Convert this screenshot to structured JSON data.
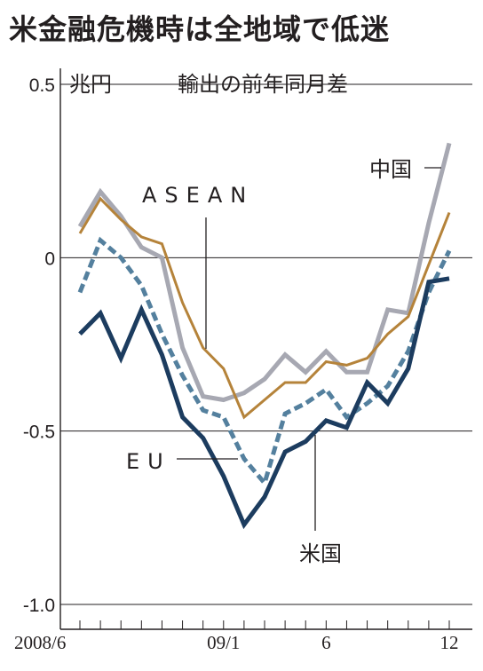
{
  "chart_data": {
    "type": "line",
    "title": "米金融危機時は全地域で低迷",
    "ylabel": "兆円",
    "subtitle": "輸出の前年同月差",
    "ylim": [
      -1.0,
      0.5
    ],
    "y_ticks": [
      {
        "value": 0.5,
        "label": "0.5"
      },
      {
        "value": 0,
        "label": "0"
      },
      {
        "value": -0.5,
        "label": "-0.5"
      },
      {
        "value": -1.0,
        "label": "-1.0"
      }
    ],
    "x": [
      "2008/6",
      "2008/7",
      "2008/8",
      "2008/9",
      "2008/10",
      "2008/11",
      "2008/12",
      "2009/1",
      "2009/2",
      "2009/3",
      "2009/4",
      "2009/5",
      "2009/6",
      "2009/7",
      "2009/8",
      "2009/9",
      "2009/10",
      "2009/11",
      "2009/12"
    ],
    "x_tick_labels": [
      {
        "x": "2008/6",
        "label": "2008/6"
      },
      {
        "x": "2009/1",
        "label": "09/1"
      },
      {
        "x": "2009/6",
        "label": "6"
      },
      {
        "x": "2009/12",
        "label": "12"
      }
    ],
    "series": [
      {
        "name": "中国",
        "color": "#a7a8b2",
        "dashed": false,
        "values": [
          0.09,
          0.19,
          0.12,
          0.03,
          0.0,
          -0.26,
          -0.4,
          -0.41,
          -0.39,
          -0.35,
          -0.28,
          -0.33,
          -0.27,
          -0.33,
          -0.33,
          -0.15,
          -0.16,
          0.1,
          0.33
        ]
      },
      {
        "name": "ASEAN",
        "color": "#b5833a",
        "dashed": false,
        "values": [
          0.07,
          0.17,
          0.11,
          0.06,
          0.04,
          -0.13,
          -0.26,
          -0.32,
          -0.46,
          -0.41,
          -0.36,
          -0.36,
          -0.3,
          -0.31,
          -0.29,
          -0.22,
          -0.17,
          -0.02,
          0.13
        ]
      },
      {
        "name": "EU",
        "color": "#54809e",
        "dashed": true,
        "values": [
          -0.1,
          0.05,
          0.0,
          -0.08,
          -0.22,
          -0.34,
          -0.44,
          -0.46,
          -0.58,
          -0.65,
          -0.45,
          -0.42,
          -0.38,
          -0.46,
          -0.42,
          -0.37,
          -0.27,
          -0.1,
          0.02
        ]
      },
      {
        "name": "米国",
        "color": "#1c3c5f",
        "dashed": false,
        "values": [
          -0.22,
          -0.16,
          -0.29,
          -0.15,
          -0.28,
          -0.46,
          -0.52,
          -0.63,
          -0.77,
          -0.69,
          -0.56,
          -0.53,
          -0.47,
          -0.49,
          -0.36,
          -0.42,
          -0.32,
          -0.07,
          -0.06
        ]
      }
    ]
  }
}
